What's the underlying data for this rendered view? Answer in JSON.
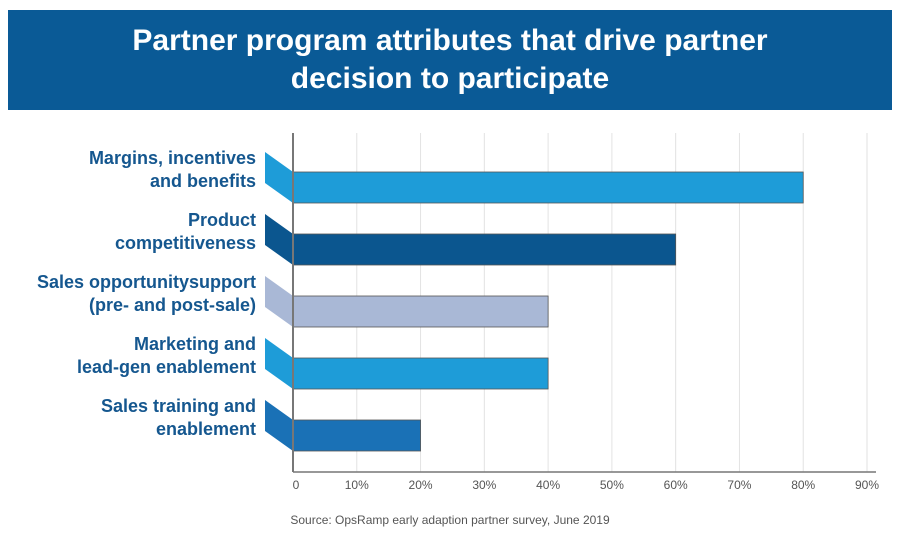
{
  "header": {
    "title": "Partner program attributes that drive partner decision to participate"
  },
  "chart_data": {
    "type": "bar",
    "orientation": "horizontal",
    "title": "Partner program attributes that drive partner decision to participate",
    "categories": [
      [
        "Margins, incentives",
        "and benefits"
      ],
      [
        "Product",
        "competitiveness"
      ],
      [
        "Sales opportunitysupport",
        "(pre- and post-sale)"
      ],
      [
        "Marketing and",
        "lead-gen enablement"
      ],
      [
        "Sales training and",
        "enablement"
      ]
    ],
    "values": [
      80,
      60,
      40,
      40,
      20
    ],
    "colors": [
      "#1e9cd8",
      "#0b568f",
      "#a9b8d6",
      "#1e9cd8",
      "#1a71b6"
    ],
    "xlim": [
      0,
      90
    ],
    "xticks": [
      0,
      10,
      20,
      30,
      40,
      50,
      60,
      70,
      80,
      90
    ],
    "xtick_labels": [
      "0",
      "10%",
      "20%",
      "30%",
      "40%",
      "50%",
      "60%",
      "70%",
      "80%",
      "90%"
    ],
    "grid": true,
    "xlabel": "",
    "ylabel": ""
  },
  "footer": {
    "source": "Source: OpsRamp early adaption partner survey, June 2019"
  }
}
